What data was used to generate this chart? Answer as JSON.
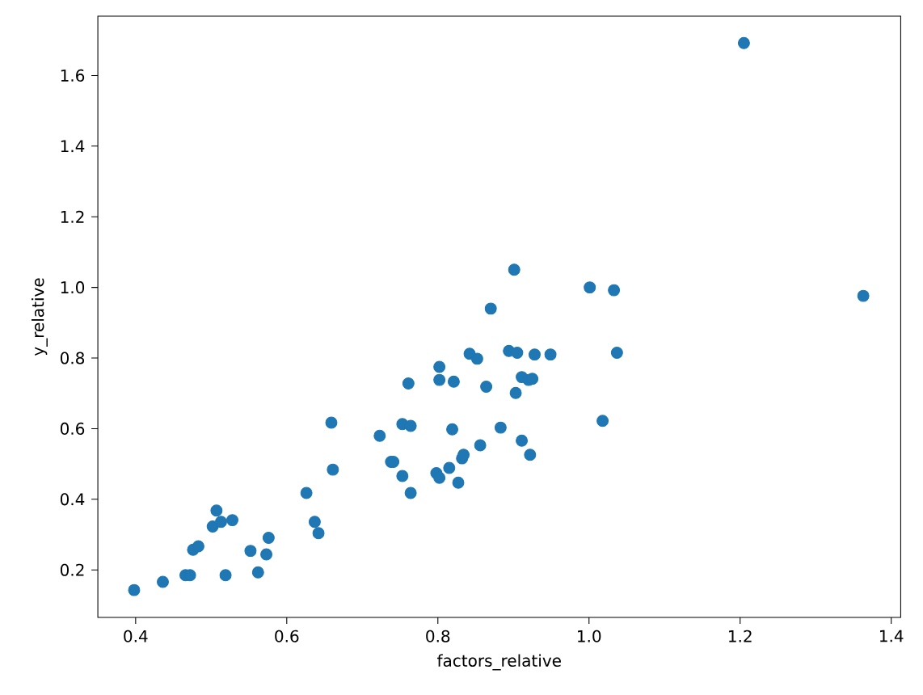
{
  "chart_data": {
    "type": "scatter",
    "xlabel": "factors_relative",
    "ylabel": "y_relative",
    "color": "#1f77b4",
    "marker": "circle",
    "grid": false,
    "xlim": [
      0.35,
      1.4125
    ],
    "ylim": [
      0.0655,
      1.768
    ],
    "xticks": [
      0.4,
      0.6,
      0.8,
      {
        "value": 1,
        "label": "1.0"
      },
      1.2,
      1.4
    ],
    "yticks": [
      0.2,
      0.4,
      0.6,
      0.8,
      {
        "value": 1,
        "label": "1.0"
      },
      1.2,
      1.4,
      1.6
    ],
    "x": [
      0.398,
      0.436,
      0.466,
      0.472,
      0.519,
      0.562,
      0.476,
      0.483,
      0.552,
      0.573,
      0.576,
      0.502,
      0.513,
      0.528,
      0.507,
      0.626,
      0.637,
      0.642,
      0.661,
      0.659,
      0.723,
      0.738,
      0.741,
      0.753,
      0.764,
      0.753,
      0.764,
      0.761,
      0.802,
      0.802,
      0.821,
      0.798,
      0.802,
      0.815,
      0.827,
      0.832,
      0.834,
      0.819,
      0.856,
      0.864,
      0.842,
      0.852,
      0.87,
      0.883,
      0.894,
      0.905,
      0.928,
      0.949,
      0.901,
      0.903,
      0.911,
      0.92,
      0.925,
      0.911,
      0.922,
      1.001,
      1.033,
      1.037,
      1.018,
      1.205,
      1.363
    ],
    "values": [
      0.143,
      0.166,
      0.185,
      0.185,
      0.185,
      0.193,
      0.257,
      0.267,
      0.254,
      0.244,
      0.291,
      0.323,
      0.336,
      0.341,
      0.368,
      0.418,
      0.336,
      0.304,
      0.484,
      0.617,
      0.58,
      0.506,
      0.506,
      0.466,
      0.418,
      0.613,
      0.608,
      0.728,
      0.775,
      0.738,
      0.733,
      0.474,
      0.461,
      0.489,
      0.447,
      0.516,
      0.526,
      0.598,
      0.553,
      0.719,
      0.812,
      0.798,
      0.94,
      0.603,
      0.82,
      0.815,
      0.81,
      0.81,
      1.05,
      0.701,
      0.746,
      0.738,
      0.741,
      0.566,
      0.526,
      1.0,
      0.992,
      0.815,
      0.622,
      1.692,
      0.976
    ]
  }
}
